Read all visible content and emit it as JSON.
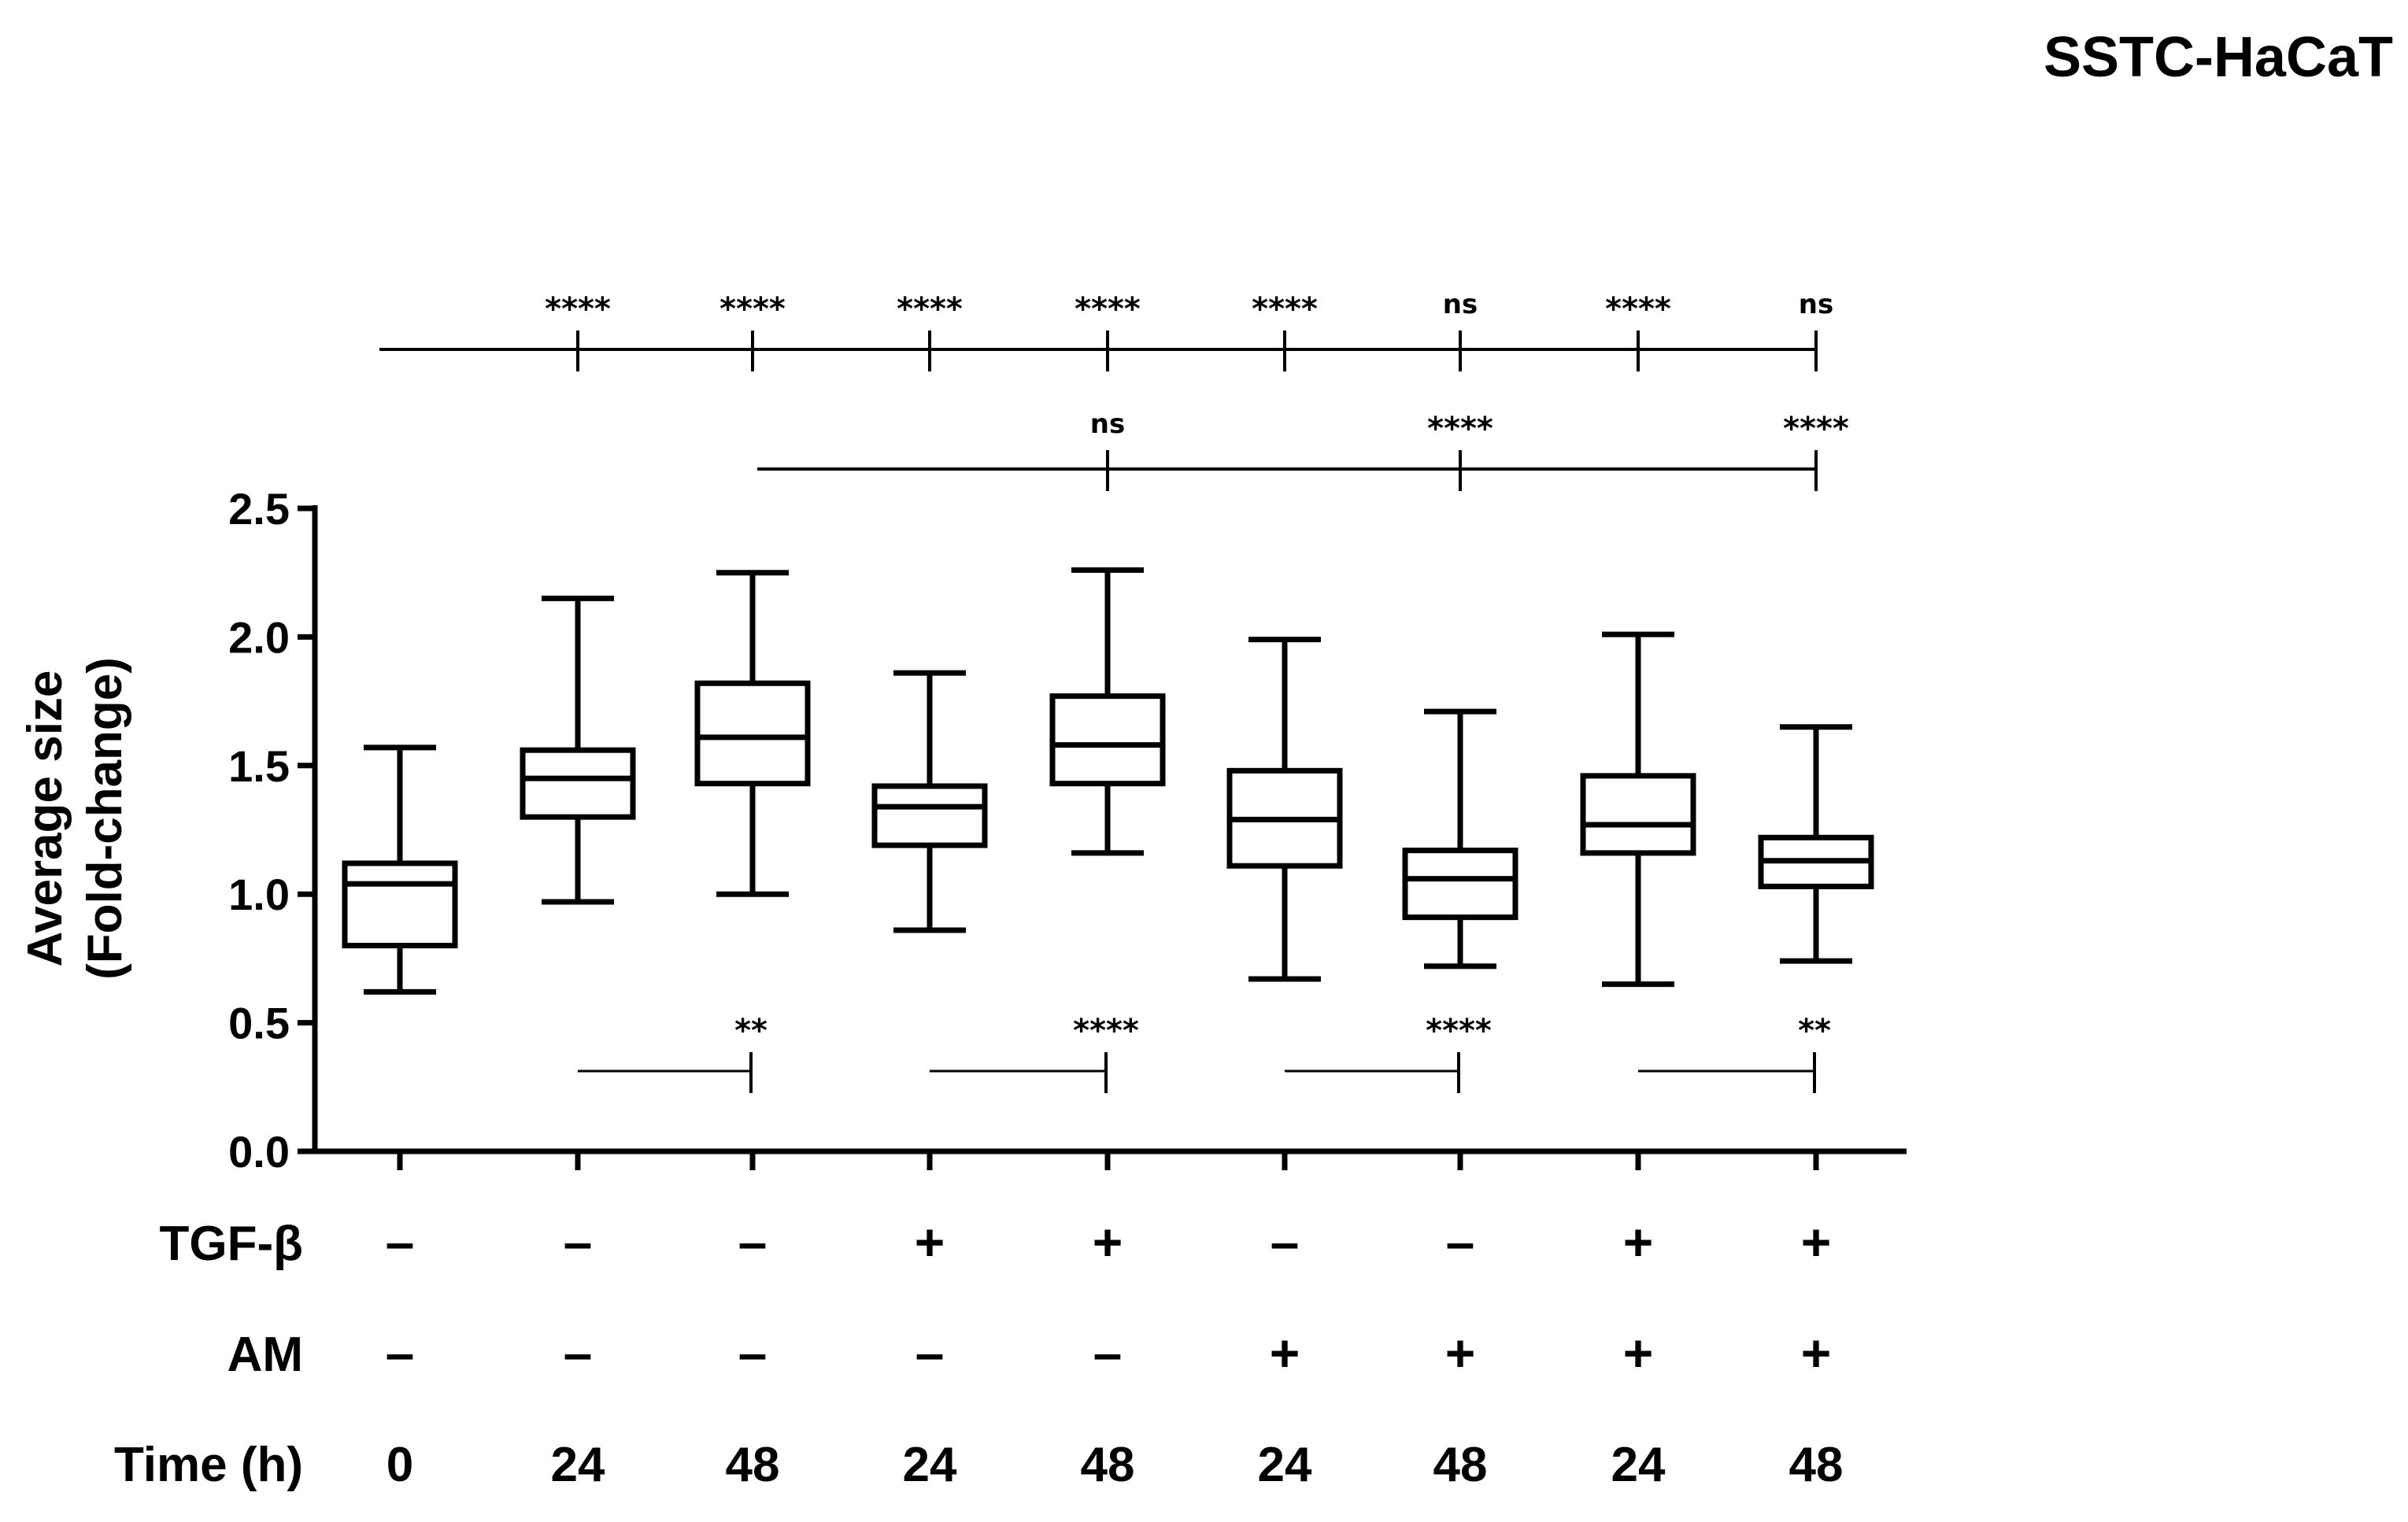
{
  "chart_data": {
    "type": "box",
    "title": "SSTC-HaCaT",
    "ylabel": [
      "Average size",
      "(Fold-change)"
    ],
    "ylim": [
      0,
      2.5
    ],
    "yticks": [
      "0.0",
      "0.5",
      "1.0",
      "1.5",
      "2.0",
      "2.5"
    ],
    "grid": false,
    "legend": "none",
    "groups": [
      {
        "tgf": "–",
        "am": "–",
        "time": "0",
        "min": 0.62,
        "q1": 0.8,
        "median": 1.04,
        "q3": 1.12,
        "max": 1.57
      },
      {
        "tgf": "–",
        "am": "–",
        "time": "24",
        "min": 0.97,
        "q1": 1.3,
        "median": 1.45,
        "q3": 1.56,
        "max": 2.15
      },
      {
        "tgf": "–",
        "am": "–",
        "time": "48",
        "min": 1.0,
        "q1": 1.43,
        "median": 1.61,
        "q3": 1.82,
        "max": 2.25
      },
      {
        "tgf": "+",
        "am": "–",
        "time": "24",
        "min": 0.86,
        "q1": 1.19,
        "median": 1.34,
        "q3": 1.42,
        "max": 1.86
      },
      {
        "tgf": "+",
        "am": "–",
        "time": "48",
        "min": 1.16,
        "q1": 1.43,
        "median": 1.58,
        "q3": 1.77,
        "max": 2.26
      },
      {
        "tgf": "–",
        "am": "+",
        "time": "24",
        "min": 0.67,
        "q1": 1.11,
        "median": 1.29,
        "q3": 1.48,
        "max": 1.99
      },
      {
        "tgf": "–",
        "am": "+",
        "time": "48",
        "min": 0.72,
        "q1": 0.91,
        "median": 1.06,
        "q3": 1.17,
        "max": 1.71
      },
      {
        "tgf": "+",
        "am": "+",
        "time": "24",
        "min": 0.65,
        "q1": 1.16,
        "median": 1.27,
        "q3": 1.46,
        "max": 2.01
      },
      {
        "tgf": "+",
        "am": "+",
        "time": "48",
        "min": 0.74,
        "q1": 1.03,
        "median": 1.13,
        "q3": 1.22,
        "max": 1.65
      }
    ],
    "row_labels": {
      "tgf": "TGF-β",
      "am": "AM",
      "time": "Time (h)"
    },
    "comparisons_row1": {
      "from": 0,
      "marks": [
        "",
        "****",
        "****",
        "****",
        "****",
        "****",
        "ns",
        "****",
        "ns"
      ]
    },
    "comparisons_row2": {
      "from": 2,
      "targets": [
        4,
        6,
        8
      ],
      "marks": [
        "ns",
        "****",
        "****"
      ]
    },
    "comparisons_pairs": [
      {
        "from": 1,
        "to": 2,
        "mark": "**"
      },
      {
        "from": 3,
        "to": 4,
        "mark": "****"
      },
      {
        "from": 5,
        "to": 6,
        "mark": "****"
      },
      {
        "from": 7,
        "to": 8,
        "mark": "**"
      }
    ]
  }
}
